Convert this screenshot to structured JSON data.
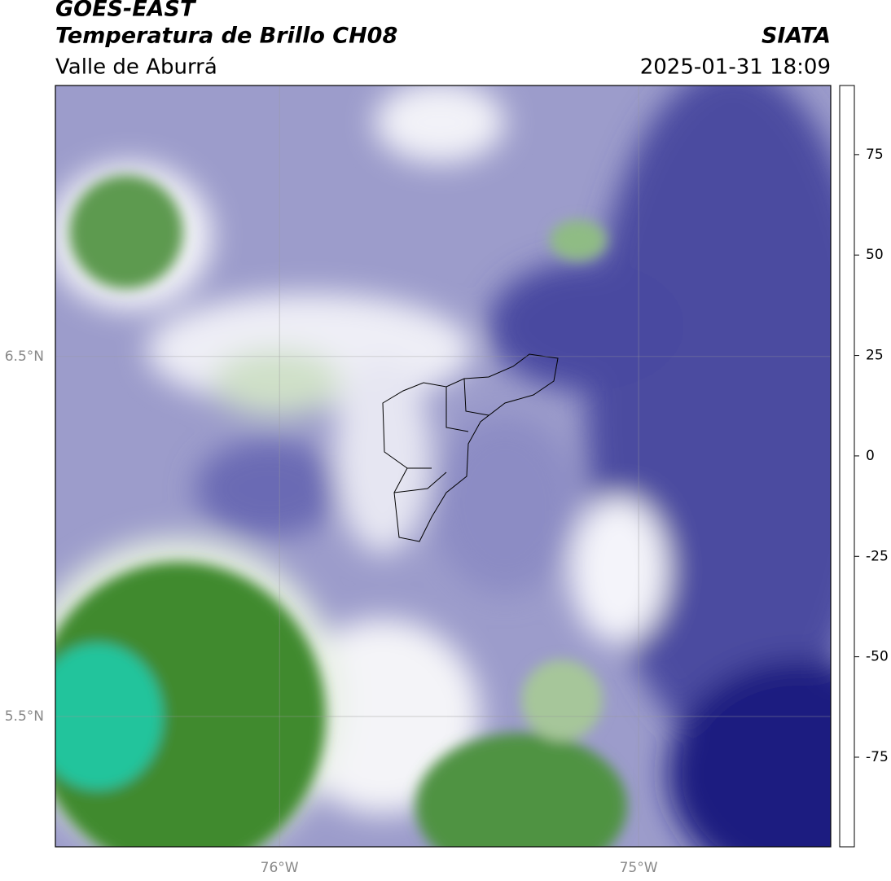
{
  "chart_data": {
    "type": "map",
    "title": "GOES-EAST",
    "subtitle": "Temperatura de Brillo CH08",
    "region": "Valle de Aburrá",
    "source": "SIATA",
    "timestamp": "2025-01-31 18:09",
    "xlim": [
      -76.624,
      -74.465
    ],
    "ylim": [
      5.138,
      7.253
    ],
    "xticks": [
      {
        "value": -76,
        "label": "76°W"
      },
      {
        "value": -75,
        "label": "75°W"
      }
    ],
    "yticks": [
      {
        "value": 6.5,
        "label": "6.5°N"
      },
      {
        "value": 5.5,
        "label": "5.5°N"
      }
    ],
    "grid": true,
    "colorbar": {
      "clim": [
        -97.3,
        92.2
      ],
      "ticks": [
        75,
        50,
        25,
        0,
        -25,
        -50,
        -75
      ],
      "colormap": [
        {
          "value": -97.3,
          "color": "#ffffff"
        },
        {
          "value": -92.8,
          "color": "#ffffff"
        },
        {
          "value": -92.7,
          "color": "#00e8e0"
        },
        {
          "value": -80,
          "color": "#1fc89a"
        },
        {
          "value": -70,
          "color": "#2f8c3e"
        },
        {
          "value": -62,
          "color": "#4b8a2e"
        },
        {
          "value": -55,
          "color": "#b4cfa8"
        },
        {
          "value": -50,
          "color": "#ffffff"
        },
        {
          "value": -44,
          "color": "#c4c4e0"
        },
        {
          "value": -35,
          "color": "#7474b4"
        },
        {
          "value": -28,
          "color": "#2c2c90"
        },
        {
          "value": -24,
          "color": "#00006e"
        },
        {
          "value": -20,
          "color": "#4a4a30"
        },
        {
          "value": -12,
          "color": "#f0f000"
        },
        {
          "value": 0,
          "color": "#ff8c00"
        },
        {
          "value": 8,
          "color": "#ff2000"
        },
        {
          "value": 8.1,
          "color": "#000000"
        },
        {
          "value": 92.2,
          "color": "#000000"
        }
      ]
    }
  }
}
